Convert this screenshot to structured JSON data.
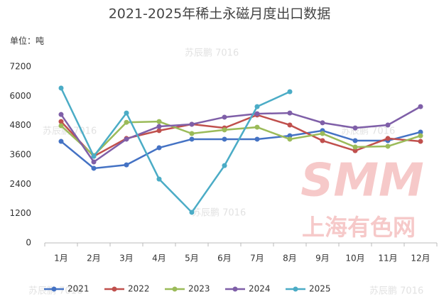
{
  "chart_data": {
    "type": "line",
    "title": "2021-2025年稀土永磁月度出口数据",
    "unit_label": "单位：吨",
    "categories": [
      "1月",
      "2月",
      "3月",
      "4月",
      "5月",
      "6月",
      "7月",
      "8月",
      "9月",
      "10月",
      "11月",
      "12月"
    ],
    "series": [
      {
        "name": "2021",
        "color": "#4472c4",
        "values": [
          4150,
          3050,
          3190,
          3890,
          4240,
          4240,
          4240,
          4380,
          4590,
          4180,
          4180,
          4530
        ]
      },
      {
        "name": "2022",
        "color": "#c0504d",
        "values": [
          4960,
          3540,
          4270,
          4590,
          4850,
          4700,
          5230,
          4820,
          4180,
          3770,
          4270,
          4150
        ]
      },
      {
        "name": "2023",
        "color": "#9bbb59",
        "values": [
          4790,
          3570,
          4930,
          4960,
          4470,
          4620,
          4730,
          4240,
          4470,
          3920,
          3950,
          4380
        ]
      },
      {
        "name": "2024",
        "color": "#7f5fa8",
        "values": [
          5250,
          3310,
          4240,
          4760,
          4850,
          5140,
          5280,
          5310,
          4910,
          4700,
          4820,
          5570
        ]
      },
      {
        "name": "2025",
        "color": "#4bacc6",
        "values": [
          6330,
          3540,
          5310,
          2610,
          1250,
          3160,
          5570,
          6180,
          null,
          null,
          null,
          null
        ]
      }
    ],
    "ylim": [
      0,
      7200
    ],
    "yticks": [
      0,
      1200,
      2400,
      3600,
      4800,
      6000,
      7200
    ],
    "grid": false,
    "legend": "bottom",
    "watermark": {
      "logo": "SMM",
      "text": "上海有色网",
      "author": "苏辰鹏 7016"
    }
  }
}
